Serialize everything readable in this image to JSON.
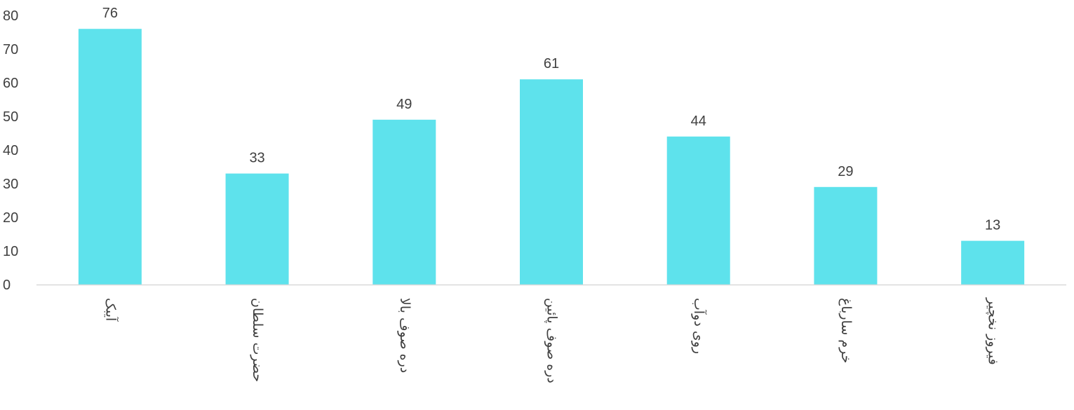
{
  "chart_data": {
    "type": "bar",
    "categories": [
      "آیبک",
      "حضرت سلطان",
      "دره صوف بالا",
      "دره صوف پائین",
      "روی دوآب",
      "خرم سارباغ",
      "فیروز نخچیر"
    ],
    "values": [
      76,
      33,
      49,
      61,
      44,
      29,
      13
    ],
    "title": "",
    "xlabel": "",
    "ylabel": "",
    "ylim": [
      0,
      80
    ],
    "yticks": [
      0,
      10,
      20,
      30,
      40,
      50,
      60,
      70,
      80
    ],
    "bar_color": "#5ee2ec",
    "axis_color": "#d9d9d9",
    "grid": false,
    "legend": "none"
  }
}
